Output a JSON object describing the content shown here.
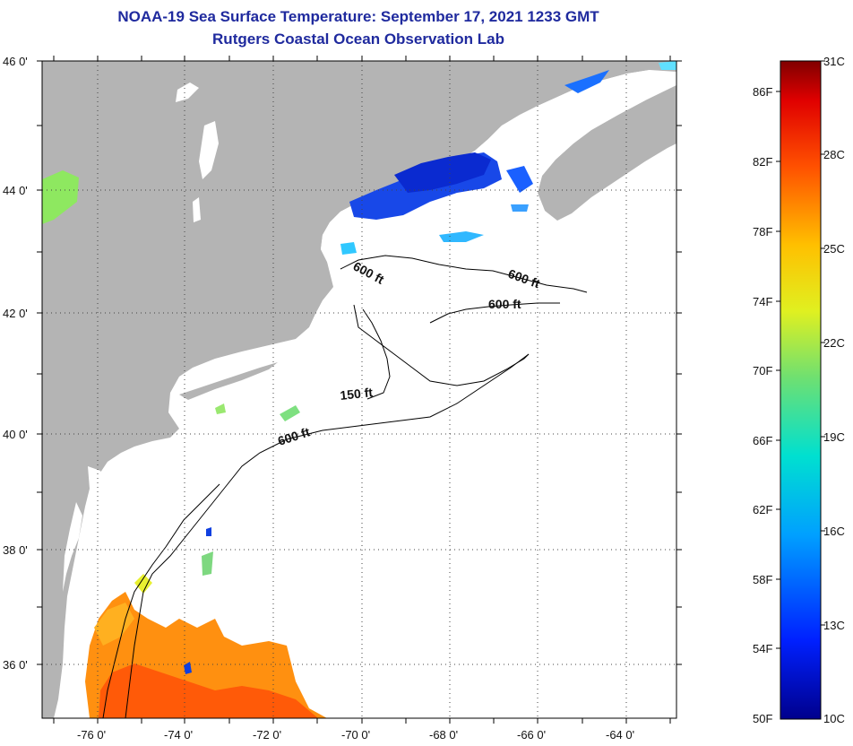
{
  "title": {
    "line1": "NOAA-19 Sea Surface Temperature:  September 17, 2021 1233 GMT",
    "line2": "Rutgers Coastal Ocean Observation Lab"
  },
  "map": {
    "lat_labels": [
      "46 0'",
      "44 0'",
      "42 0'",
      "40 0'",
      "38 0'",
      "36 0'"
    ],
    "lon_labels": [
      "-76 0'",
      "-74 0'",
      "-72 0'",
      "-70 0'",
      "-68 0'",
      "-66 0'",
      "-64 0'"
    ],
    "contour_labels": [
      "600 ft",
      "600 ft",
      "600 ft",
      "150 ft",
      "600 ft"
    ]
  },
  "colorbar": {
    "celsius": [
      "31C",
      "28C",
      "25C",
      "22C",
      "19C",
      "16C",
      "13C",
      "10C"
    ],
    "fahrenheit": [
      "86F",
      "82F",
      "78F",
      "74F",
      "70F",
      "66F",
      "62F",
      "58F",
      "54F",
      "50F"
    ]
  },
  "colors": {
    "title": "#1f2a9e",
    "land": "#b4b4b4",
    "ocean": "#ffffff"
  }
}
